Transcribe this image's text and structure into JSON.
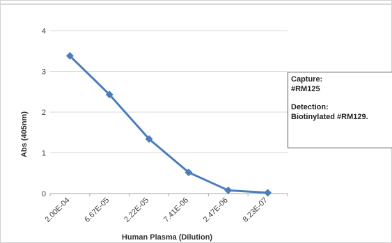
{
  "chart_data": {
    "type": "line",
    "title": "",
    "xlabel": "Human Plasma (Dilution)",
    "ylabel": "Abs (405nm)",
    "categories": [
      "2.00E-04",
      "6.67E-05",
      "2.22E-05",
      "7.41E-06",
      "2.47E-06",
      "8.23E-07"
    ],
    "series": [
      {
        "values": [
          3.38,
          2.43,
          1.34,
          0.52,
          0.08,
          0.02
        ]
      }
    ],
    "ylim": [
      0,
      4
    ],
    "yticks": [
      "0",
      "1",
      "2",
      "3",
      "4"
    ],
    "grid": true,
    "line_color": "#4a7ebb",
    "grid_color": "#d9d9d9",
    "annotation": {
      "capture_label": "Capture:",
      "capture_value": "#RM125",
      "detection_label": "Detection:",
      "detection_value": "Biotinylated #RM129."
    }
  }
}
